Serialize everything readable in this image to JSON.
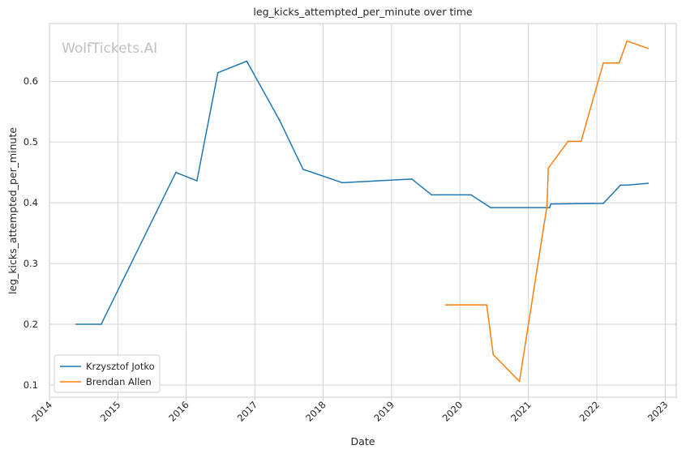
{
  "chart_data": {
    "type": "line",
    "title": "leg_kicks_attempted_per_minute over time",
    "xlabel": "Date",
    "ylabel": "leg_kicks_attempted_per_minute",
    "watermark": "WolfTickets.AI",
    "xlim": [
      "2014-01-01",
      "2023-03-01"
    ],
    "ylim": [
      0.08,
      0.695
    ],
    "x_ticks": [
      "2014",
      "2015",
      "2016",
      "2017",
      "2018",
      "2019",
      "2020",
      "2021",
      "2022",
      "2023"
    ],
    "y_ticks": [
      "0.1",
      "0.2",
      "0.3",
      "0.4",
      "0.5",
      "0.6"
    ],
    "grid": true,
    "legend_position": "lower-left",
    "series": [
      {
        "name": "Krzysztof Jotko",
        "color": "#1f77b4",
        "x": [
          "2014-05-24",
          "2014-10-04",
          "2015-11-07",
          "2016-02-27",
          "2016-06-18",
          "2016-11-19",
          "2017-05-13",
          "2017-09-16",
          "2018-04-14",
          "2019-04-20",
          "2019-08-03",
          "2020-02-29",
          "2020-06-13",
          "2021-04-24",
          "2021-05-01",
          "2022-02-05",
          "2022-05-07",
          "2022-06-11",
          "2022-10-01"
        ],
        "values": [
          0.2,
          0.2,
          0.45,
          0.436,
          0.614,
          0.633,
          0.536,
          0.455,
          0.433,
          0.439,
          0.413,
          0.413,
          0.392,
          0.392,
          0.398,
          0.399,
          0.429,
          0.429,
          0.432
        ]
      },
      {
        "name": "Brendan Allen",
        "color": "#ff7f0e",
        "x": [
          "2019-10-18",
          "2020-05-23",
          "2020-06-27",
          "2020-11-14",
          "2021-04-10",
          "2021-04-17",
          "2021-07-31",
          "2021-10-09",
          "2022-02-05",
          "2022-04-30",
          "2022-06-11",
          "2022-10-01"
        ],
        "values": [
          0.232,
          0.232,
          0.15,
          0.106,
          0.395,
          0.457,
          0.501,
          0.501,
          0.63,
          0.63,
          0.666,
          0.654
        ]
      }
    ]
  }
}
